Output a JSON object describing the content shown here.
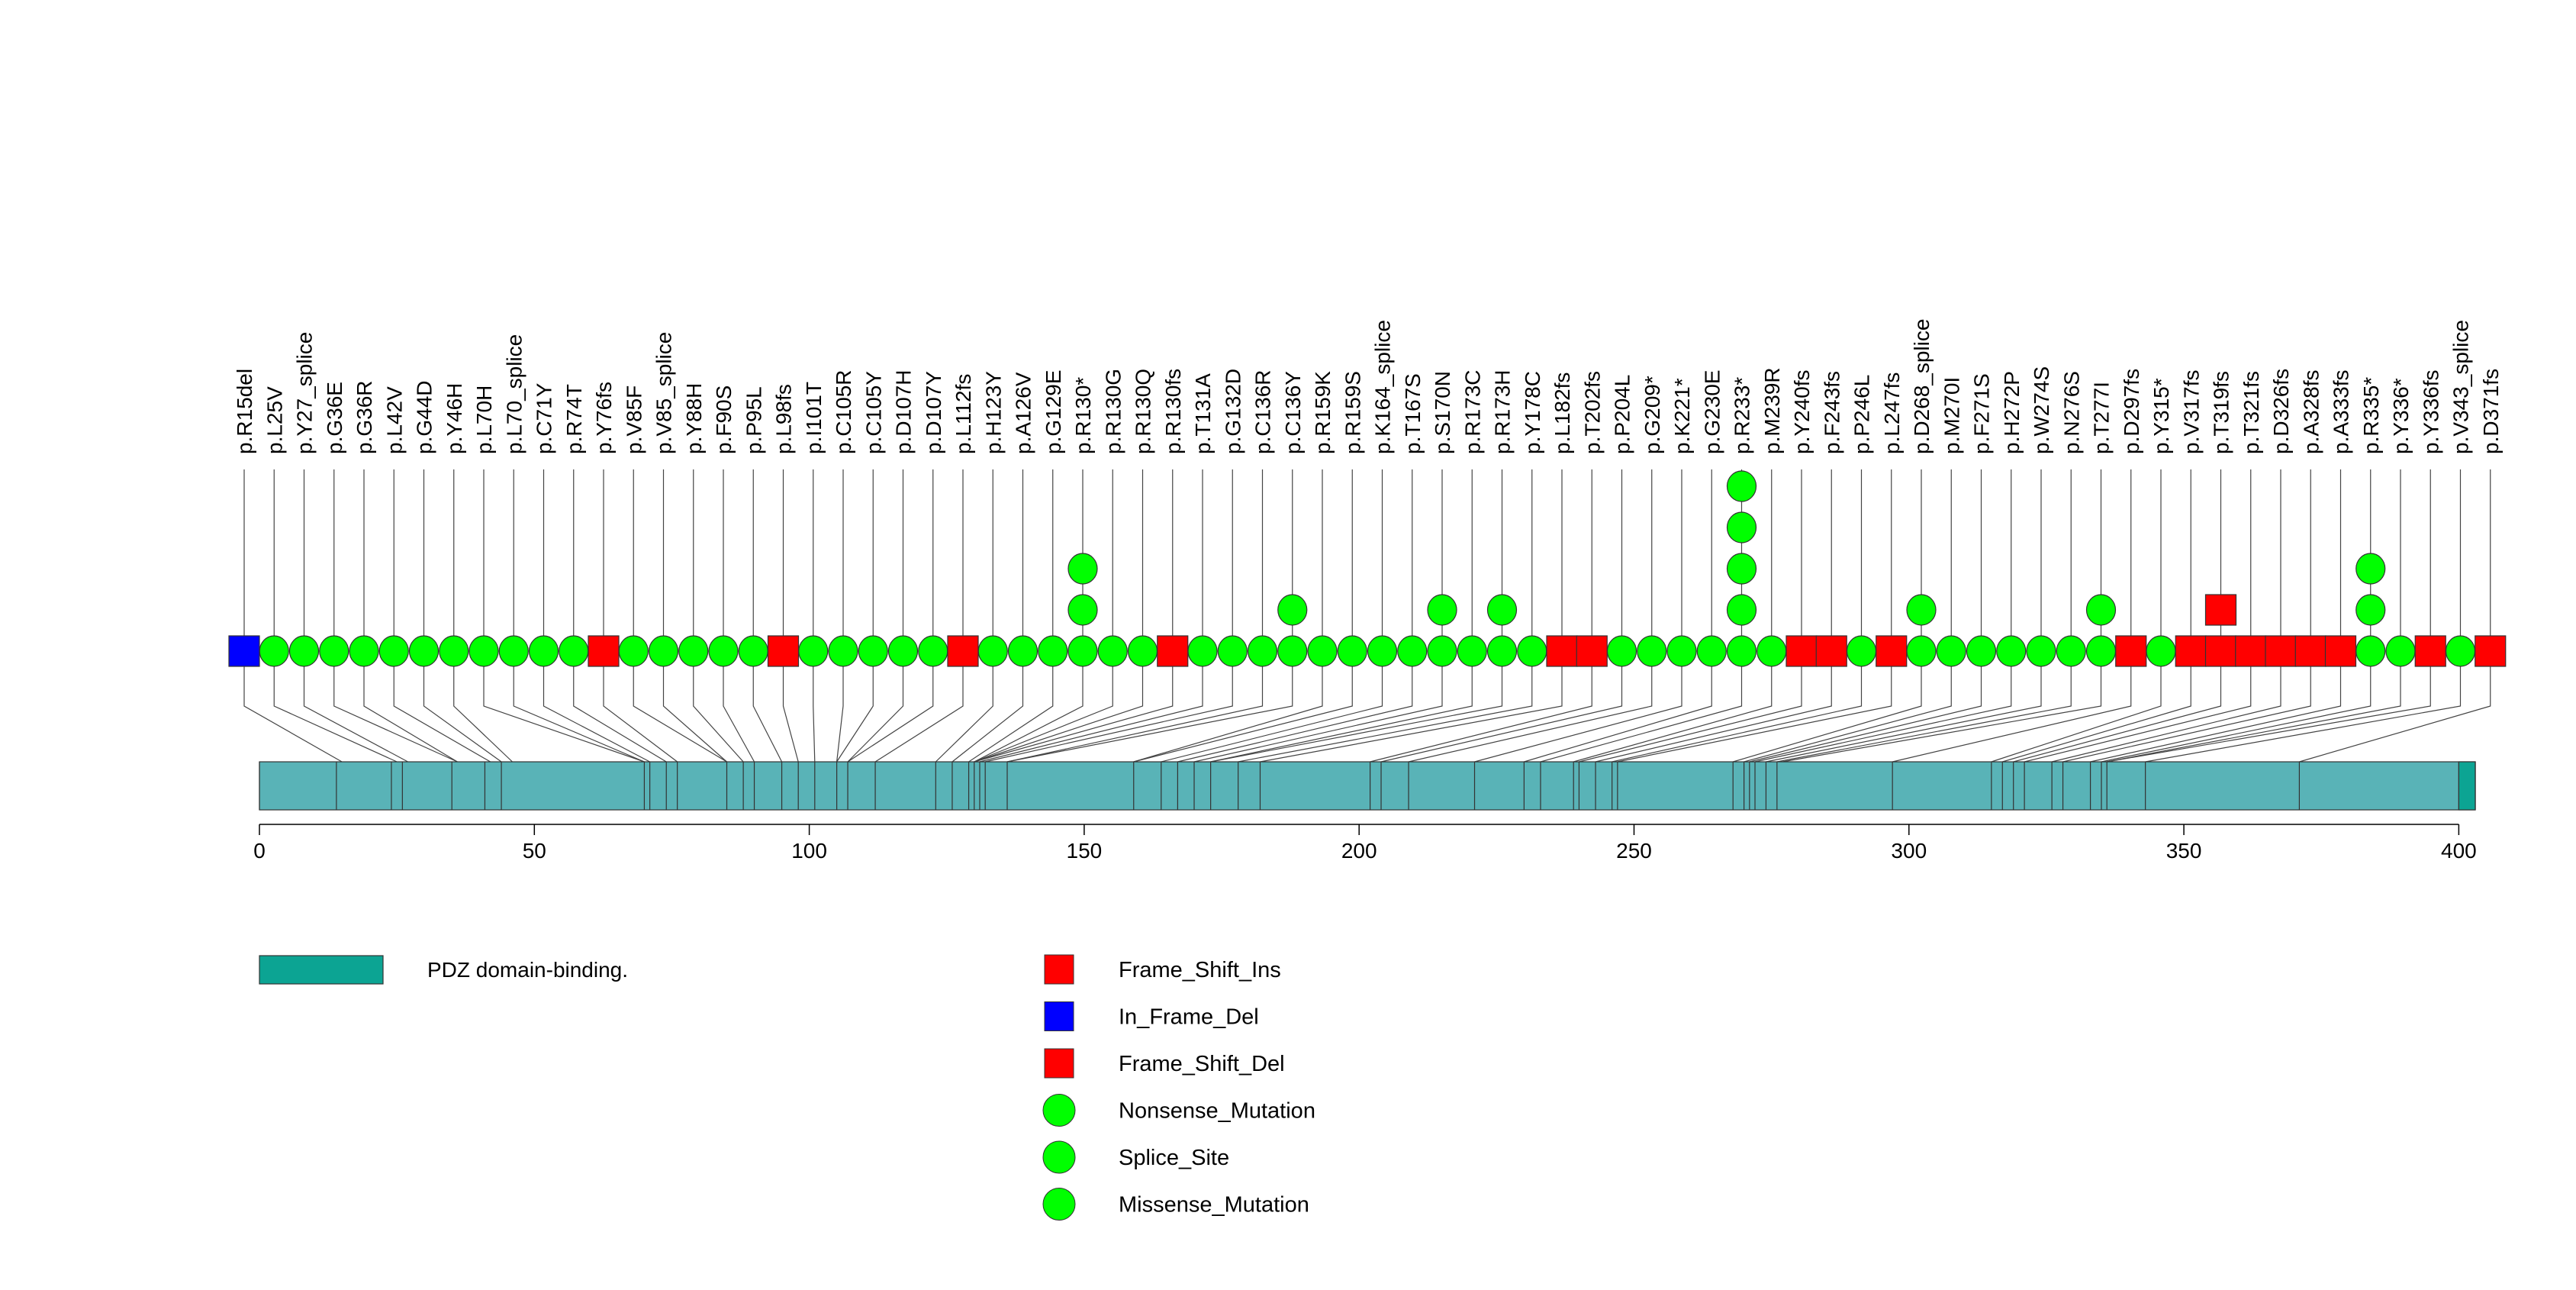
{
  "chart_data": {
    "type": "lollipop",
    "title": "",
    "xlabel": "",
    "ylabel": "",
    "xlim": [
      0,
      403
    ],
    "x_ticks": [
      "0",
      "50",
      "100",
      "150",
      "200",
      "250",
      "300",
      "350",
      "400"
    ],
    "protein_length": 403,
    "domain": {
      "name": "PDZ domain-binding.",
      "start": 400,
      "end": 403,
      "color": "#0ca493"
    },
    "segment_boundaries": [
      0,
      14,
      24,
      26,
      35,
      41,
      44,
      70,
      71,
      74,
      76,
      85,
      88,
      90,
      95,
      98,
      101,
      105,
      107,
      112,
      123,
      126,
      129,
      130,
      131,
      132,
      136,
      159,
      164,
      167,
      170,
      173,
      178,
      182,
      202,
      204,
      209,
      221,
      230,
      233,
      239,
      240,
      243,
      246,
      247,
      268,
      270,
      271,
      272,
      274,
      276,
      297,
      315,
      317,
      319,
      321,
      326,
      328,
      333,
      335,
      336,
      343,
      371,
      400,
      403
    ],
    "mutation_classes": [
      {
        "name": "Frame_Shift_Ins",
        "shape": "square",
        "color": "#ff0000"
      },
      {
        "name": "In_Frame_Del",
        "shape": "square",
        "color": "#0000ff"
      },
      {
        "name": "Frame_Shift_Del",
        "shape": "square",
        "color": "#ff0000"
      },
      {
        "name": "Nonsense_Mutation",
        "shape": "circle",
        "color": "#00ff00"
      },
      {
        "name": "Splice_Site",
        "shape": "circle",
        "color": "#00ff00"
      },
      {
        "name": "Missense_Mutation",
        "shape": "circle",
        "color": "#00ff00"
      }
    ],
    "mutations": [
      {
        "label": "p.R15del",
        "position": 15,
        "shape": "square",
        "color": "#0000ff",
        "stack": 1
      },
      {
        "label": "p.L25V",
        "position": 25,
        "shape": "circle",
        "color": "#00ff00",
        "stack": 1
      },
      {
        "label": "p.Y27_splice",
        "position": 27,
        "shape": "circle",
        "color": "#00ff00",
        "stack": 1
      },
      {
        "label": "p.G36E",
        "position": 36,
        "shape": "circle",
        "color": "#00ff00",
        "stack": 1
      },
      {
        "label": "p.G36R",
        "position": 36,
        "shape": "circle",
        "color": "#00ff00",
        "stack": 1
      },
      {
        "label": "p.L42V",
        "position": 42,
        "shape": "circle",
        "color": "#00ff00",
        "stack": 1
      },
      {
        "label": "p.G44D",
        "position": 44,
        "shape": "circle",
        "color": "#00ff00",
        "stack": 1
      },
      {
        "label": "p.Y46H",
        "position": 46,
        "shape": "circle",
        "color": "#00ff00",
        "stack": 1
      },
      {
        "label": "p.L70H",
        "position": 70,
        "shape": "circle",
        "color": "#00ff00",
        "stack": 1
      },
      {
        "label": "p.L70_splice",
        "position": 70,
        "shape": "circle",
        "color": "#00ff00",
        "stack": 1
      },
      {
        "label": "p.C71Y",
        "position": 71,
        "shape": "circle",
        "color": "#00ff00",
        "stack": 1
      },
      {
        "label": "p.R74T",
        "position": 74,
        "shape": "circle",
        "color": "#00ff00",
        "stack": 1
      },
      {
        "label": "p.Y76fs",
        "position": 76,
        "shape": "square",
        "color": "#ff0000",
        "stack": 1
      },
      {
        "label": "p.V85F",
        "position": 85,
        "shape": "circle",
        "color": "#00ff00",
        "stack": 1
      },
      {
        "label": "p.V85_splice",
        "position": 85,
        "shape": "circle",
        "color": "#00ff00",
        "stack": 1
      },
      {
        "label": "p.Y88H",
        "position": 88,
        "shape": "circle",
        "color": "#00ff00",
        "stack": 1
      },
      {
        "label": "p.F90S",
        "position": 90,
        "shape": "circle",
        "color": "#00ff00",
        "stack": 1
      },
      {
        "label": "p.P95L",
        "position": 95,
        "shape": "circle",
        "color": "#00ff00",
        "stack": 1
      },
      {
        "label": "p.L98fs",
        "position": 98,
        "shape": "square",
        "color": "#ff0000",
        "stack": 1
      },
      {
        "label": "p.I101T",
        "position": 101,
        "shape": "circle",
        "color": "#00ff00",
        "stack": 1
      },
      {
        "label": "p.C105R",
        "position": 105,
        "shape": "circle",
        "color": "#00ff00",
        "stack": 1
      },
      {
        "label": "p.C105Y",
        "position": 105,
        "shape": "circle",
        "color": "#00ff00",
        "stack": 1
      },
      {
        "label": "p.D107H",
        "position": 107,
        "shape": "circle",
        "color": "#00ff00",
        "stack": 1
      },
      {
        "label": "p.D107Y",
        "position": 107,
        "shape": "circle",
        "color": "#00ff00",
        "stack": 1
      },
      {
        "label": "p.L112fs",
        "position": 112,
        "shape": "square",
        "color": "#ff0000",
        "stack": 1
      },
      {
        "label": "p.H123Y",
        "position": 123,
        "shape": "circle",
        "color": "#00ff00",
        "stack": 1
      },
      {
        "label": "p.A126V",
        "position": 126,
        "shape": "circle",
        "color": "#00ff00",
        "stack": 1
      },
      {
        "label": "p.G129E",
        "position": 129,
        "shape": "circle",
        "color": "#00ff00",
        "stack": 1
      },
      {
        "label": "p.R130*",
        "position": 130,
        "shape": "circle",
        "color": "#00ff00",
        "stack": 3
      },
      {
        "label": "p.R130G",
        "position": 130,
        "shape": "circle",
        "color": "#00ff00",
        "stack": 1
      },
      {
        "label": "p.R130Q",
        "position": 130,
        "shape": "circle",
        "color": "#00ff00",
        "stack": 1
      },
      {
        "label": "p.R130fs",
        "position": 130,
        "shape": "square",
        "color": "#ff0000",
        "stack": 1
      },
      {
        "label": "p.T131A",
        "position": 131,
        "shape": "circle",
        "color": "#00ff00",
        "stack": 1
      },
      {
        "label": "p.G132D",
        "position": 132,
        "shape": "circle",
        "color": "#00ff00",
        "stack": 1
      },
      {
        "label": "p.C136R",
        "position": 136,
        "shape": "circle",
        "color": "#00ff00",
        "stack": 1
      },
      {
        "label": "p.C136Y",
        "position": 136,
        "shape": "circle",
        "color": "#00ff00",
        "stack": 2
      },
      {
        "label": "p.R159K",
        "position": 159,
        "shape": "circle",
        "color": "#00ff00",
        "stack": 1
      },
      {
        "label": "p.R159S",
        "position": 159,
        "shape": "circle",
        "color": "#00ff00",
        "stack": 1
      },
      {
        "label": "p.K164_splice",
        "position": 164,
        "shape": "circle",
        "color": "#00ff00",
        "stack": 1
      },
      {
        "label": "p.T167S",
        "position": 167,
        "shape": "circle",
        "color": "#00ff00",
        "stack": 1
      },
      {
        "label": "p.S170N",
        "position": 170,
        "shape": "circle",
        "color": "#00ff00",
        "stack": 2
      },
      {
        "label": "p.R173C",
        "position": 173,
        "shape": "circle",
        "color": "#00ff00",
        "stack": 1
      },
      {
        "label": "p.R173H",
        "position": 173,
        "shape": "circle",
        "color": "#00ff00",
        "stack": 2
      },
      {
        "label": "p.Y178C",
        "position": 178,
        "shape": "circle",
        "color": "#00ff00",
        "stack": 1
      },
      {
        "label": "p.L182fs",
        "position": 182,
        "shape": "square",
        "color": "#ff0000",
        "stack": 1
      },
      {
        "label": "p.T202fs",
        "position": 202,
        "shape": "square",
        "color": "#ff0000",
        "stack": 1
      },
      {
        "label": "p.P204L",
        "position": 204,
        "shape": "circle",
        "color": "#00ff00",
        "stack": 1
      },
      {
        "label": "p.G209*",
        "position": 209,
        "shape": "circle",
        "color": "#00ff00",
        "stack": 1
      },
      {
        "label": "p.K221*",
        "position": 221,
        "shape": "circle",
        "color": "#00ff00",
        "stack": 1
      },
      {
        "label": "p.G230E",
        "position": 230,
        "shape": "circle",
        "color": "#00ff00",
        "stack": 1
      },
      {
        "label": "p.R233*",
        "position": 233,
        "shape": "circle",
        "color": "#00ff00",
        "stack": 5
      },
      {
        "label": "p.M239R",
        "position": 239,
        "shape": "circle",
        "color": "#00ff00",
        "stack": 1
      },
      {
        "label": "p.Y240fs",
        "position": 240,
        "shape": "square",
        "color": "#ff0000",
        "stack": 1
      },
      {
        "label": "p.F243fs",
        "position": 243,
        "shape": "square",
        "color": "#ff0000",
        "stack": 1
      },
      {
        "label": "p.P246L",
        "position": 246,
        "shape": "circle",
        "color": "#00ff00",
        "stack": 1
      },
      {
        "label": "p.L247fs",
        "position": 247,
        "shape": "square",
        "color": "#ff0000",
        "stack": 1
      },
      {
        "label": "p.D268_splice",
        "position": 268,
        "shape": "circle",
        "color": "#00ff00",
        "stack": 2
      },
      {
        "label": "p.M270I",
        "position": 270,
        "shape": "circle",
        "color": "#00ff00",
        "stack": 1
      },
      {
        "label": "p.F271S",
        "position": 271,
        "shape": "circle",
        "color": "#00ff00",
        "stack": 1
      },
      {
        "label": "p.H272P",
        "position": 272,
        "shape": "circle",
        "color": "#00ff00",
        "stack": 1
      },
      {
        "label": "p.W274S",
        "position": 274,
        "shape": "circle",
        "color": "#00ff00",
        "stack": 1
      },
      {
        "label": "p.N276S",
        "position": 276,
        "shape": "circle",
        "color": "#00ff00",
        "stack": 1
      },
      {
        "label": "p.T277I",
        "position": 277,
        "shape": "circle",
        "color": "#00ff00",
        "stack": 2
      },
      {
        "label": "p.D297fs",
        "position": 297,
        "shape": "square",
        "color": "#ff0000",
        "stack": 1
      },
      {
        "label": "p.Y315*",
        "position": 315,
        "shape": "circle",
        "color": "#00ff00",
        "stack": 1
      },
      {
        "label": "p.V317fs",
        "position": 317,
        "shape": "square",
        "color": "#ff0000",
        "stack": 1
      },
      {
        "label": "p.T319fs",
        "position": 319,
        "shape": "square",
        "color": "#ff0000",
        "stack": 2
      },
      {
        "label": "p.T321fs",
        "position": 321,
        "shape": "square",
        "color": "#ff0000",
        "stack": 1
      },
      {
        "label": "p.D326fs",
        "position": 326,
        "shape": "square",
        "color": "#ff0000",
        "stack": 1
      },
      {
        "label": "p.A328fs",
        "position": 328,
        "shape": "square",
        "color": "#ff0000",
        "stack": 1
      },
      {
        "label": "p.A333fs",
        "position": 333,
        "shape": "square",
        "color": "#ff0000",
        "stack": 1
      },
      {
        "label": "p.R335*",
        "position": 335,
        "shape": "circle",
        "color": "#00ff00",
        "stack": 3
      },
      {
        "label": "p.Y336*",
        "position": 336,
        "shape": "circle",
        "color": "#00ff00",
        "stack": 1
      },
      {
        "label": "p.Y336fs",
        "position": 336,
        "shape": "square",
        "color": "#ff0000",
        "stack": 1
      },
      {
        "label": "p.V343_splice",
        "position": 343,
        "shape": "circle",
        "color": "#00ff00",
        "stack": 1
      },
      {
        "label": "p.D371fs",
        "position": 371,
        "shape": "square",
        "color": "#ff0000",
        "stack": 1
      }
    ]
  }
}
